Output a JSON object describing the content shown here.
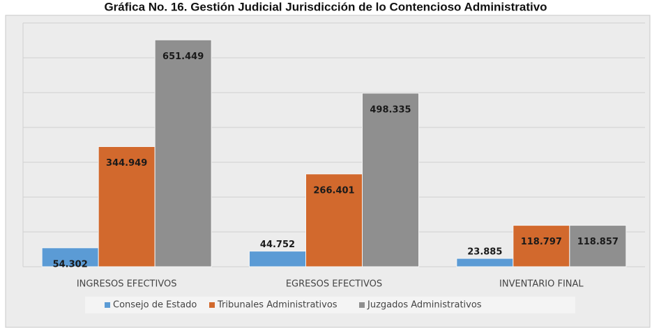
{
  "chart_data": {
    "type": "bar",
    "title": "Gráfica No. 16. Gestión Judicial Jurisdicción de lo Contencioso Administrativo",
    "categories": [
      "INGRESOS EFECTIVOS",
      "EGRESOS EFECTIVOS",
      "INVENTARIO FINAL"
    ],
    "series": [
      {
        "name": "Consejo de Estado",
        "color": "#5b9bd5",
        "values": [
          54302,
          44752,
          23885
        ],
        "value_labels": [
          "54.302",
          "44.752",
          "23.885"
        ]
      },
      {
        "name": "Tribunales Administrativos",
        "color": "#d2692d",
        "values": [
          344949,
          266401,
          118797
        ],
        "value_labels": [
          "344.949",
          "266.401",
          "118.797"
        ]
      },
      {
        "name": "Juzgados Administrativos",
        "color": "#8f8f8f",
        "values": [
          651449,
          498335,
          118857
        ],
        "value_labels": [
          "651.449",
          "498.335",
          "118.857"
        ]
      }
    ],
    "ylim": [
      0,
      700000
    ],
    "yticks": [
      0,
      100000,
      200000,
      300000,
      400000,
      500000,
      600000,
      700000
    ],
    "grid": true
  }
}
